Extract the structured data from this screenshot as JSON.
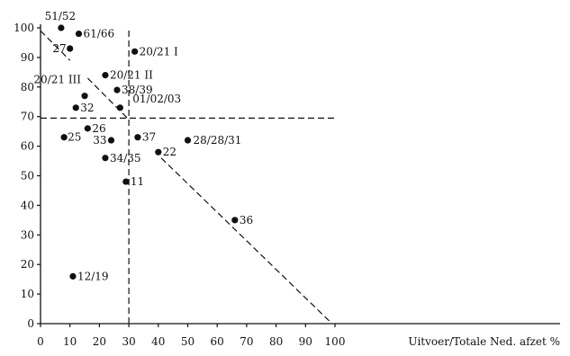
{
  "chart_data": {
    "type": "scatter",
    "title": "",
    "xlabel": "Uitvoer/Totale Ned. afzet %",
    "ylabel": "",
    "xlim": [
      0,
      100
    ],
    "ylim": [
      0,
      100
    ],
    "x_ticks": [
      0,
      10,
      20,
      30,
      40,
      50,
      60,
      70,
      80,
      90,
      100
    ],
    "y_ticks": [
      0,
      10,
      20,
      30,
      40,
      50,
      60,
      70,
      80,
      90,
      100
    ],
    "grid": false,
    "points": [
      {
        "label": "51/52",
        "x": 7,
        "y": 100
      },
      {
        "label": "61/66",
        "x": 13,
        "y": 98
      },
      {
        "label": "27",
        "x": 10,
        "y": 93
      },
      {
        "label": "20/21 I",
        "x": 32,
        "y": 92
      },
      {
        "label": "20/21 II",
        "x": 22,
        "y": 84
      },
      {
        "label": "38/39",
        "x": 26,
        "y": 79
      },
      {
        "label": "20/21 III",
        "x": 15,
        "y": 77
      },
      {
        "label": "01/02/03",
        "x": 27,
        "y": 73
      },
      {
        "label": "32",
        "x": 12,
        "y": 73
      },
      {
        "label": "26",
        "x": 16,
        "y": 66
      },
      {
        "label": "25",
        "x": 8,
        "y": 63
      },
      {
        "label": "33",
        "x": 24,
        "y": 62
      },
      {
        "label": "37",
        "x": 33,
        "y": 63
      },
      {
        "label": "28/28/31",
        "x": 50,
        "y": 62
      },
      {
        "label": "22",
        "x": 40,
        "y": 58
      },
      {
        "label": "34/35",
        "x": 22,
        "y": 56
      },
      {
        "label": "11",
        "x": 29,
        "y": 48
      },
      {
        "label": "36",
        "x": 66,
        "y": 35
      },
      {
        "label": "12/19",
        "x": 11,
        "y": 16
      }
    ],
    "reference_lines": [
      {
        "kind": "vertical",
        "x": 30,
        "y_from": 0,
        "y_to": 100
      },
      {
        "kind": "horizontal",
        "y": 69.5,
        "x_from": 0,
        "x_to": 100
      },
      {
        "kind": "segment",
        "from": [
          0,
          99
        ],
        "to": [
          10,
          89
        ]
      },
      {
        "kind": "segment",
        "from": [
          16,
          83
        ],
        "to": [
          30,
          69
        ]
      },
      {
        "kind": "segment",
        "from": [
          41,
          56
        ],
        "to": [
          99,
          0
        ]
      }
    ]
  }
}
